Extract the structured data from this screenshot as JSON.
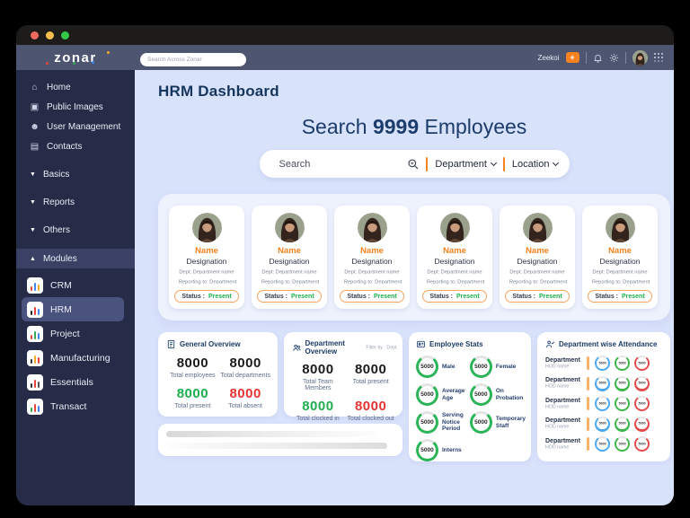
{
  "colors": {
    "accent_orange": "#F58220",
    "green": "#1FAE4E",
    "red": "#E53232",
    "navy": "#1D3B66",
    "topbar": "#4D5571",
    "sidebar": "#262B47",
    "content_bg": "#D9E2FB",
    "ring_green": "#2BB558",
    "ring_blue": "#4AA8F0",
    "ring_red": "#E24A4A"
  },
  "topbar": {
    "logo": "zonar",
    "search_placeholder": "Search Across Zonar",
    "user": "Zeekoi",
    "add_label": "+",
    "icons": [
      "bell-icon",
      "gear-icon",
      "avatar",
      "apps-grid-icon"
    ]
  },
  "sidebar": {
    "items": [
      {
        "label": "Home",
        "icon": "home-icon",
        "glyph": "⌂"
      },
      {
        "label": "Public Images",
        "icon": "images-icon",
        "glyph": "▣"
      },
      {
        "label": "User Management",
        "icon": "users-icon",
        "glyph": "☻"
      },
      {
        "label": "Contacts",
        "icon": "contacts-icon",
        "glyph": "▤"
      }
    ],
    "sections": [
      {
        "label": "Basics",
        "caret": "▼"
      },
      {
        "label": "Reports",
        "caret": "▼"
      },
      {
        "label": "Others",
        "caret": "▼"
      }
    ],
    "modules_header": "Modules",
    "modules_caret": "▲",
    "modules": [
      {
        "label": "CRM",
        "active": false,
        "colors": [
          "#e8453c",
          "#4285f4",
          "#f9a825"
        ]
      },
      {
        "label": "HRM",
        "active": true,
        "colors": [
          "#222222",
          "#e8453c",
          "#4285f4"
        ]
      },
      {
        "label": "Project",
        "active": false,
        "colors": [
          "#e8453c",
          "#34a853",
          "#4285f4"
        ]
      },
      {
        "label": "Manufacturing",
        "active": false,
        "colors": [
          "#333333",
          "#f9a825",
          "#e8453c"
        ]
      },
      {
        "label": "Essentials",
        "active": false,
        "colors": [
          "#333333",
          "#e8453c",
          "#555555"
        ]
      },
      {
        "label": "Transact",
        "active": false,
        "colors": [
          "#34a853",
          "#e8453c",
          "#4285f4"
        ]
      }
    ]
  },
  "main": {
    "page_title": "HRM Dashboard",
    "hero": {
      "prefix": "Search",
      "count": "9999",
      "suffix": "Employees"
    },
    "search": {
      "placeholder": "Search",
      "filters": [
        "Department",
        "Location"
      ]
    },
    "employee_cards_count": 6,
    "employee_card": {
      "name": "Name",
      "designation": "Designation",
      "dept": "Dept: Department name",
      "reporting": "Reporting to: Department",
      "status_label": "Status :",
      "status_value": "Present"
    },
    "panels": {
      "general_overview": {
        "title": "General Overview",
        "icon": "document-icon",
        "stats": [
          {
            "value": "8000",
            "label": "Total employees",
            "color": "dark"
          },
          {
            "value": "8000",
            "label": "Total departments",
            "color": "dark"
          },
          {
            "value": "8000",
            "label": "Total present",
            "color": "green"
          },
          {
            "value": "8000",
            "label": "Total absent",
            "color": "red"
          }
        ]
      },
      "department_overview": {
        "title": "Department Overview",
        "icon": "people-icon",
        "filter_note": "Filter by : Dept",
        "stats": [
          {
            "value": "8000",
            "label": "Total Team Members",
            "color": "dark"
          },
          {
            "value": "8000",
            "label": "Total present",
            "color": "dark"
          },
          {
            "value": "8000",
            "label": "Total clocked in",
            "color": "green"
          },
          {
            "value": "8000",
            "label": "Total clocked out",
            "color": "red"
          }
        ]
      },
      "employee_stats": {
        "title": "Employee Stats",
        "icon": "badge-icon",
        "items": [
          {
            "value": "5000",
            "label": "Male"
          },
          {
            "value": "5000",
            "label": "Female"
          },
          {
            "value": "5000",
            "label": "Average Age"
          },
          {
            "value": "5000",
            "label": "On Probation"
          },
          {
            "value": "5000",
            "label": "Serving Notice Period"
          },
          {
            "value": "5000",
            "label": "Temporary Staff"
          },
          {
            "value": "5000",
            "label": "Interns"
          }
        ]
      },
      "attendance": {
        "title": "Department wise Attendance",
        "icon": "person-check-icon",
        "rows": [
          {
            "department": "Department",
            "hod": "HOD name",
            "rings": [
              {
                "value": "5000",
                "color": "#4AA8F0"
              },
              {
                "value": "5000",
                "color": "#3CB54A"
              },
              {
                "value": "5000",
                "color": "#E24A4A"
              }
            ]
          },
          {
            "department": "Department",
            "hod": "HOD name",
            "rings": [
              {
                "value": "5000",
                "color": "#4AA8F0"
              },
              {
                "value": "5000",
                "color": "#3CB54A"
              },
              {
                "value": "5000",
                "color": "#E24A4A"
              }
            ]
          },
          {
            "department": "Department",
            "hod": "HOD name",
            "rings": [
              {
                "value": "5000",
                "color": "#4AA8F0"
              },
              {
                "value": "5000",
                "color": "#3CB54A"
              },
              {
                "value": "5000",
                "color": "#E24A4A"
              }
            ]
          },
          {
            "department": "Department",
            "hod": "HOD name",
            "rings": [
              {
                "value": "5000",
                "color": "#4AA8F0"
              },
              {
                "value": "5000",
                "color": "#3CB54A"
              },
              {
                "value": "5000",
                "color": "#E24A4A"
              }
            ]
          },
          {
            "department": "Department",
            "hod": "HOD name",
            "rings": [
              {
                "value": "5000",
                "color": "#4AA8F0"
              },
              {
                "value": "5000",
                "color": "#3CB54A"
              },
              {
                "value": "5000",
                "color": "#E24A4A"
              }
            ]
          }
        ]
      }
    }
  }
}
